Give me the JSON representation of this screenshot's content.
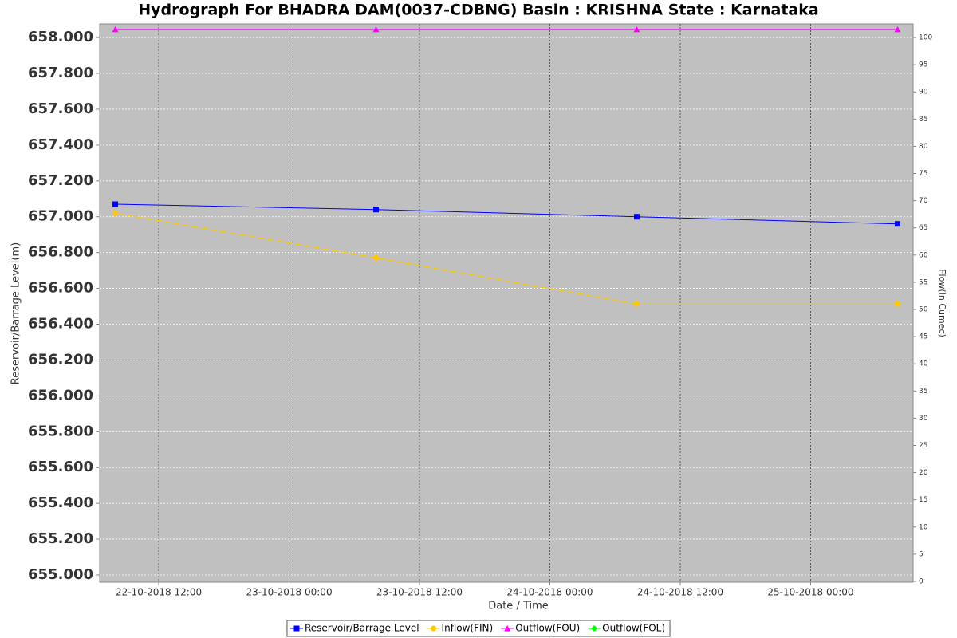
{
  "chart_data": {
    "type": "line",
    "title": "Hydrograph For BHADRA DAM(0037-CDBNG) Basin : KRISHNA State : Karnataka",
    "xlabel": "Date / Time",
    "ylabel": "Reservoir/Barrage Level(m)",
    "y2label": "Flow(In Cumec)",
    "x": [
      "2018-10-22T08:00",
      "2018-10-23T08:00",
      "2018-10-24T08:00",
      "2018-10-25T08:00"
    ],
    "xlim": [
      "2018-10-22T06:34",
      "2018-10-25T09:26"
    ],
    "xticks": [
      {
        "value": "2018-10-22T12:00",
        "label": "22-10-2018 12:00"
      },
      {
        "value": "2018-10-23T00:00",
        "label": "23-10-2018 00:00"
      },
      {
        "value": "2018-10-23T12:00",
        "label": "23-10-2018 12:00"
      },
      {
        "value": "2018-10-24T00:00",
        "label": "24-10-2018 00:00"
      },
      {
        "value": "2018-10-24T12:00",
        "label": "24-10-2018 12:00"
      },
      {
        "value": "2018-10-25T00:00",
        "label": "25-10-2018 00:00"
      }
    ],
    "ylim": [
      654.96,
      658.076
    ],
    "yticks": [
      {
        "value": 655.0,
        "label": "655.000"
      },
      {
        "value": 655.2,
        "label": "655.200"
      },
      {
        "value": 655.4,
        "label": "655.400"
      },
      {
        "value": 655.6,
        "label": "655.600"
      },
      {
        "value": 655.8,
        "label": "655.800"
      },
      {
        "value": 656.0,
        "label": "656.000"
      },
      {
        "value": 656.2,
        "label": "656.200"
      },
      {
        "value": 656.4,
        "label": "656.400"
      },
      {
        "value": 656.6,
        "label": "656.600"
      },
      {
        "value": 656.8,
        "label": "656.800"
      },
      {
        "value": 657.0,
        "label": "657.000"
      },
      {
        "value": 657.2,
        "label": "657.200"
      },
      {
        "value": 657.4,
        "label": "657.400"
      },
      {
        "value": 657.6,
        "label": "657.600"
      },
      {
        "value": 657.8,
        "label": "657.800"
      },
      {
        "value": 658.0,
        "label": "658.000"
      }
    ],
    "y2lim": [
      -0.15,
      102.5
    ],
    "y2ticks": [
      0,
      5,
      10,
      15,
      20,
      25,
      30,
      35,
      40,
      45,
      50,
      55,
      60,
      65,
      70,
      75,
      80,
      85,
      90,
      95,
      100
    ],
    "grid": true,
    "series": [
      {
        "name": "Reservoir/Barrage Level",
        "color": "#0000ff",
        "marker": "square",
        "values": [
          657.07,
          657.04,
          657.0,
          656.96
        ]
      },
      {
        "name": "Inflow(FIN)",
        "color": "#ffc800",
        "marker": "circle",
        "axis": "y2",
        "values": [
          67.7,
          59.5,
          51.0,
          51.0
        ]
      },
      {
        "name": "Outflow(FOU)",
        "color": "#ff00ff",
        "marker": "triangle",
        "axis": "y2",
        "values": [
          101.5,
          101.5,
          101.5,
          101.5
        ]
      },
      {
        "name": "Outflow(FOL)",
        "color": "#00ff00",
        "marker": "diamond",
        "axis": "y2",
        "values": [
          null,
          null,
          null,
          null
        ]
      }
    ]
  }
}
